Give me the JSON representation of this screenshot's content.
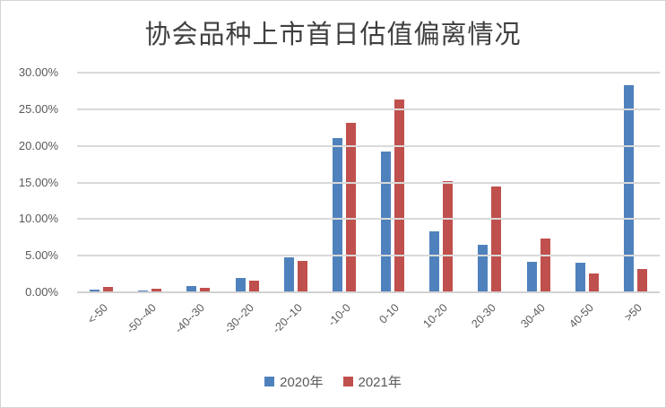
{
  "title": "协会品种上市首日估值偏离情况",
  "colors": {
    "series_2020": "#4f81bd",
    "series_2021": "#c0504d",
    "gridline": "#d9d9d9",
    "axis_text": "#595959",
    "title_text": "#3f3f3f",
    "frame_border": "#d4d4d4"
  },
  "chart_data": {
    "type": "bar",
    "title": "协会品种上市首日估值偏离情况",
    "categories": [
      "<-50",
      "-50--40",
      "-40--30",
      "-30--20",
      "-20--10",
      "-10-0",
      "0-10",
      "10-20",
      "20-30",
      "30-40",
      "40-50",
      ">50"
    ],
    "series": [
      {
        "name": "2020年",
        "color": "#4f81bd",
        "values": [
          0.4,
          0.3,
          0.9,
          1.9,
          4.8,
          21.1,
          19.2,
          8.3,
          6.5,
          4.2,
          4.0,
          28.3
        ]
      },
      {
        "name": "2021年",
        "color": "#c0504d",
        "values": [
          0.7,
          0.5,
          0.6,
          1.6,
          4.3,
          23.2,
          26.3,
          15.2,
          14.5,
          7.3,
          2.6,
          3.2
        ]
      }
    ],
    "value_unit": "%",
    "xlabel": "",
    "ylabel": "",
    "ylim": [
      0,
      30
    ],
    "ytick_step": 5,
    "ytick_labels_top_to_bottom": [
      "30.00%",
      "25.00%",
      "20.00%",
      "15.00%",
      "10.00%",
      "5.00%",
      "0.00%"
    ],
    "grid": true,
    "legend_position": "bottom"
  }
}
